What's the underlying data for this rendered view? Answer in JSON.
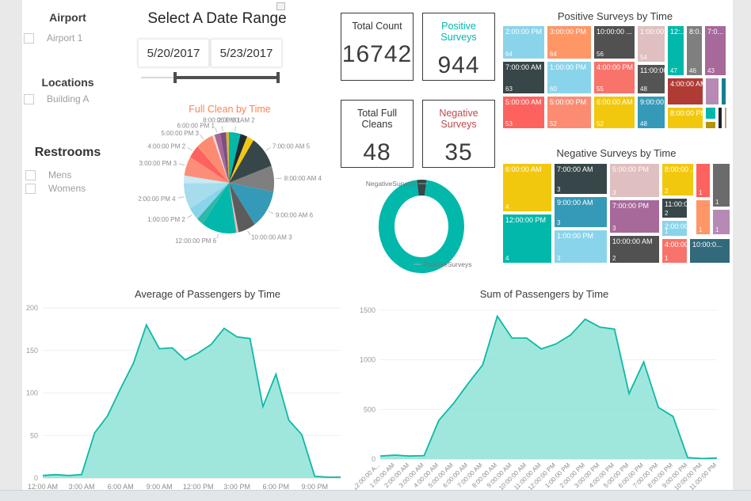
{
  "sidebar": {
    "airport": {
      "title": "Airport",
      "items": [
        {
          "label": "Airport 1",
          "checked": false
        }
      ]
    },
    "locations": {
      "title": "Locations",
      "items": [
        {
          "label": "Building A",
          "checked": false
        }
      ]
    },
    "restrooms": {
      "title": "Restrooms",
      "items": [
        {
          "label": "Mens",
          "checked": false
        },
        {
          "label": "Womens",
          "checked": false
        }
      ]
    }
  },
  "date_slicer": {
    "title": "Select A Date Range",
    "start_date": "5/20/2017",
    "end_date": "5/23/2017"
  },
  "cards": [
    {
      "title": "Total Count",
      "value": "16742",
      "title_color": "#333333"
    },
    {
      "title": "Positive Surveys",
      "value": "944",
      "title_color": "#01B8AA"
    },
    {
      "title": "Total Full Cleans",
      "value": "48",
      "title_color": "#333333"
    },
    {
      "title": "Negative Surveys",
      "value": "35",
      "title_color": "#BC4A4A"
    }
  ],
  "chart_data": [
    {
      "id": "full_clean_pie",
      "type": "pie",
      "title": "Full Clean by Time",
      "title_color": "#FC8452",
      "slices": [
        {
          "label": "2:00:00 AM",
          "value": 2,
          "color": "#01B8AA"
        },
        {
          "label": "",
          "value": 1.2,
          "color": "#212B30"
        },
        {
          "label": "",
          "value": 1.2,
          "color": "#F2C80F"
        },
        {
          "label": "7:00:00 AM",
          "value": 5,
          "color": "#374649"
        },
        {
          "label": "8:00:00 AM",
          "value": 4,
          "color": "#7F7F7F"
        },
        {
          "label": "9:00:00 AM",
          "value": 6,
          "color": "#3599B8"
        },
        {
          "label": "10:00:00 AM",
          "value": 3,
          "color": "#5C5C5C"
        },
        {
          "label": "",
          "value": 0.4,
          "color": "#DFBFBF"
        },
        {
          "label": "12:00:00 PM",
          "value": 6,
          "color": "#01B8AA"
        },
        {
          "label": "",
          "value": 1.2,
          "color": "#2FB8A9"
        },
        {
          "label": "1:00:00 PM",
          "value": 2,
          "color": "#8AD4EB"
        },
        {
          "label": "2:00:00 PM",
          "value": 4,
          "color": "#A6DCEC"
        },
        {
          "label": "",
          "value": 1.2,
          "color": "#C9E9F3"
        },
        {
          "label": "3:00:00 PM",
          "value": 3,
          "color": "#FC8E79"
        },
        {
          "label": "4:00:00 PM",
          "value": 2,
          "color": "#FD625E"
        },
        {
          "label": "5:00:00 PM",
          "value": 3,
          "color": "#FB8C72"
        },
        {
          "label": "",
          "value": 0.4,
          "color": "#EFD8D6"
        },
        {
          "label": "6:00:00 PM",
          "value": 1,
          "color": "#A66999"
        },
        {
          "label": "8:00:00 PM",
          "value": 1,
          "color": "#7B4F85"
        },
        {
          "label": "",
          "value": 0.5,
          "color": "#DDB52F"
        }
      ]
    },
    {
      "id": "surveys_donut",
      "type": "donut",
      "segments": [
        {
          "label": "NegativeSurveys",
          "value": 35,
          "color": "#374649"
        },
        {
          "label": "PositiveSurveys",
          "value": 944,
          "color": "#01B8AA"
        }
      ]
    },
    {
      "id": "positive_treemap",
      "type": "treemap",
      "title": "Positive Surveys by Time",
      "cells": [
        {
          "label": "2:00:00 PM",
          "value": "64",
          "color": "#8AD4EB"
        },
        {
          "label": "3:00:00 PM",
          "value": "64",
          "color": "#FE9666"
        },
        {
          "label": "10:00:00 ...",
          "value": "56",
          "color": "#515151"
        },
        {
          "label": "1:00:00 ...",
          "value": "54",
          "color": "#DFBFBF"
        },
        {
          "label": "12:...",
          "value": "47",
          "color": "#01B8AA"
        },
        {
          "label": "8:0...",
          "value": "46",
          "color": "#7F7F7F"
        },
        {
          "label": "7:0...",
          "value": "43",
          "color": "#A66999"
        },
        {
          "label": "7:00:00 AM",
          "value": "63",
          "color": "#374649"
        },
        {
          "label": "1:00:00 PM",
          "value": "60",
          "color": "#8AD4EB"
        },
        {
          "label": "4:00:00 PM",
          "value": "55",
          "color": "#F8736A"
        },
        {
          "label": "11:00:00...",
          "value": "48",
          "color": "#545454"
        },
        {
          "label": "5:00:00 AM",
          "value": "53",
          "color": "#FD625E"
        },
        {
          "label": "5:00:00 PM",
          "value": "52",
          "color": "#FB8C72"
        },
        {
          "label": "6:00:00 AM",
          "value": "52",
          "color": "#F2C80F"
        },
        {
          "label": "9:00:00 ...",
          "value": "48",
          "color": "#3599B8"
        },
        {
          "label": "4:00:00 AM",
          "value": "",
          "color": "#B03A34"
        },
        {
          "label": "",
          "value": "",
          "color": "#B78AB5"
        },
        {
          "label": "",
          "value": "",
          "color": "#15808D"
        },
        {
          "label": "8:00:00 PM",
          "value": "",
          "color": "#F2C80F"
        },
        {
          "label": "",
          "value": "",
          "color": "#01B8AA"
        },
        {
          "label": "",
          "value": "",
          "color": "#B49408"
        },
        {
          "label": "",
          "value": "",
          "color": "#21262B"
        },
        {
          "label": "",
          "value": "",
          "color": "#C4A287"
        }
      ]
    },
    {
      "id": "negative_treemap",
      "type": "treemap",
      "title": "Negative Surveys by Time",
      "cells": [
        {
          "label": "6:00:00 AM",
          "value": "4",
          "color": "#F2C80F"
        },
        {
          "label": "12:00:00 PM",
          "value": "4",
          "color": "#01B8AA"
        },
        {
          "label": "7:00:00 AM",
          "value": "3",
          "color": "#374649"
        },
        {
          "label": "9:00:00 AM",
          "value": "3",
          "color": "#3599B8"
        },
        {
          "label": "1:00:00 PM",
          "value": "3",
          "color": "#8AD4EB"
        },
        {
          "label": "5:00:00 PM",
          "value": "3",
          "color": "#DFBFBF"
        },
        {
          "label": "7:00:00 PM",
          "value": "3",
          "color": "#A66999"
        },
        {
          "label": "10:00:00 AM",
          "value": "2",
          "color": "#515151"
        },
        {
          "label": "8:00:00 ...",
          "value": "2",
          "color": "#F2C80F"
        },
        {
          "label": "11:00:0...",
          "value": "2",
          "color": "#374649"
        },
        {
          "label": "2:00:00...",
          "value": "1",
          "color": "#8AD4EB"
        },
        {
          "label": "4:00:00...",
          "value": "1",
          "color": "#F8736A"
        },
        {
          "label": "",
          "value": "1",
          "color": "#FD625E"
        },
        {
          "label": "",
          "value": "1",
          "color": "#6B6B6B"
        },
        {
          "label": "",
          "value": "1",
          "color": "#FE9666"
        },
        {
          "label": "",
          "value": "1",
          "color": "#B78AB5"
        },
        {
          "label": "10:00:0...",
          "value": "",
          "color": "#336A7B"
        }
      ]
    },
    {
      "id": "avg_passengers",
      "type": "area",
      "title": "Average of Passengers by Time",
      "ylabel": "",
      "xlabel": "",
      "ylim": [
        0,
        200
      ],
      "yticks": [
        0,
        50,
        100,
        150,
        200
      ],
      "x_tick_labels": [
        "12:00 AM",
        "3:00 AM",
        "6:00 AM",
        "9:00 AM",
        "12:00 PM",
        "3:00 PM",
        "6:00 PM",
        "9:00 PM"
      ],
      "values": [
        3,
        4,
        3,
        4,
        53,
        73,
        105,
        135,
        180,
        152,
        153,
        139,
        147,
        157,
        176,
        166,
        164,
        84,
        122,
        68,
        51,
        2,
        1,
        1
      ]
    },
    {
      "id": "sum_passengers",
      "type": "area",
      "title": "Sum of Passengers by Time",
      "ylabel": "",
      "xlabel": "",
      "ylim": [
        0,
        1500
      ],
      "yticks": [
        0,
        500,
        1000,
        1500
      ],
      "categories": [
        "12:00:00 A...",
        "1:00:00 AM",
        "2:00:00 AM",
        "3:00:00 AM",
        "4:00:00 AM",
        "5:00:00 AM",
        "6:00:00 AM",
        "7:00:00 AM",
        "8:00:00 AM",
        "9:00:00 AM",
        "10:00:00 AM",
        "11:00:00 AM",
        "12:00:00 PM",
        "1:00:00 PM",
        "2:00:00 PM",
        "3:00:00 PM",
        "4:00:00 PM",
        "5:00:00 PM",
        "6:00:00 PM",
        "7:00:00 PM",
        "8:00:00 PM",
        "9:00:00 PM",
        "10:00:00 PM",
        "11:00:00 PM"
      ],
      "values": [
        30,
        40,
        30,
        35,
        390,
        560,
        760,
        950,
        1440,
        1220,
        1220,
        1110,
        1160,
        1250,
        1410,
        1330,
        1310,
        660,
        980,
        520,
        430,
        15,
        5,
        10
      ]
    }
  ],
  "area_style": {
    "fill": "#87E1D3",
    "stroke": "#0FB8A7"
  }
}
